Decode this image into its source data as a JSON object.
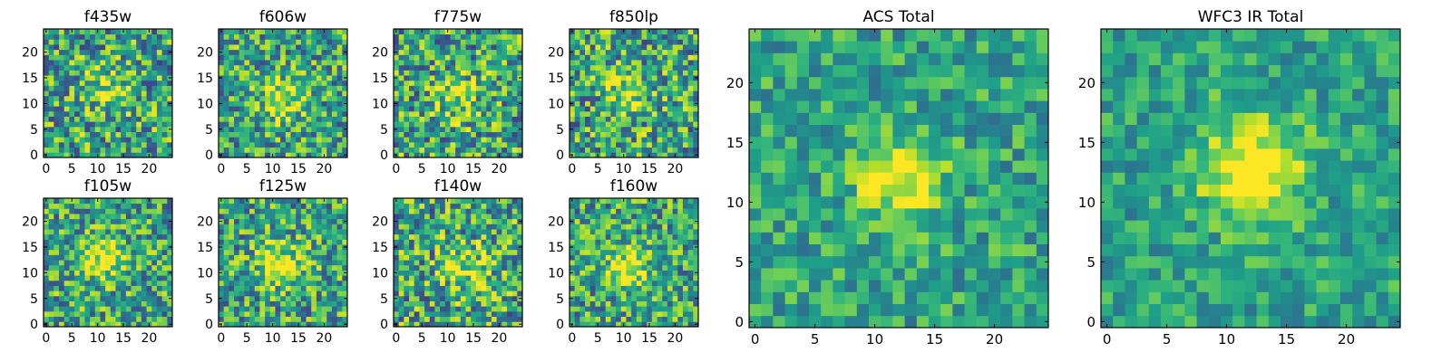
{
  "chart_data": [
    {
      "type": "heatmap",
      "title": "f435w",
      "colormap": "viridis",
      "grid_size": 25,
      "xticks": [
        0,
        5,
        10,
        15,
        20
      ],
      "yticks": [
        0,
        5,
        10,
        15,
        20
      ],
      "xlim": [
        -0.5,
        24.5
      ],
      "ylim": [
        -0.5,
        24.5
      ],
      "seed": 11,
      "noise": 0.55,
      "blob": {
        "x": 12,
        "y": 13,
        "sigma": 3.0,
        "amp": 0.3
      },
      "grid": false
    },
    {
      "type": "heatmap",
      "title": "f606w",
      "colormap": "viridis",
      "grid_size": 25,
      "xticks": [
        0,
        5,
        10,
        15,
        20
      ],
      "yticks": [
        0,
        5,
        10,
        15,
        20
      ],
      "xlim": [
        -0.5,
        24.5
      ],
      "ylim": [
        -0.5,
        24.5
      ],
      "seed": 23,
      "noise": 0.5,
      "blob": {
        "x": 12,
        "y": 11,
        "sigma": 3.0,
        "amp": 0.35
      },
      "grid": false
    },
    {
      "type": "heatmap",
      "title": "f775w",
      "colormap": "viridis",
      "grid_size": 25,
      "xticks": [
        0,
        5,
        10,
        15,
        20
      ],
      "yticks": [
        0,
        5,
        10,
        15,
        20
      ],
      "xlim": [
        -0.5,
        24.5
      ],
      "ylim": [
        -0.5,
        24.5
      ],
      "seed": 37,
      "noise": 0.55,
      "blob": {
        "x": 12,
        "y": 11,
        "sigma": 3.0,
        "amp": 0.3
      },
      "grid": false
    },
    {
      "type": "heatmap",
      "title": "f850lp",
      "colormap": "viridis",
      "grid_size": 25,
      "xticks": [
        0,
        5,
        10,
        15,
        20
      ],
      "yticks": [
        0,
        5,
        10,
        15,
        20
      ],
      "xlim": [
        -0.5,
        24.5
      ],
      "ylim": [
        -0.5,
        24.5
      ],
      "seed": 41,
      "noise": 0.55,
      "blob": {
        "x": 11,
        "y": 12,
        "sigma": 3.0,
        "amp": 0.3
      },
      "grid": false
    },
    {
      "type": "heatmap",
      "title": "f105w",
      "colormap": "viridis",
      "grid_size": 25,
      "xticks": [
        0,
        5,
        10,
        15,
        20
      ],
      "yticks": [
        0,
        5,
        10,
        15,
        20
      ],
      "xlim": [
        -0.5,
        24.5
      ],
      "ylim": [
        -0.5,
        24.5
      ],
      "seed": 53,
      "noise": 0.5,
      "blob": {
        "x": 11,
        "y": 13,
        "sigma": 3.2,
        "amp": 0.4
      },
      "grid": false
    },
    {
      "type": "heatmap",
      "title": "f125w",
      "colormap": "viridis",
      "grid_size": 25,
      "xticks": [
        0,
        5,
        10,
        15,
        20
      ],
      "yticks": [
        0,
        5,
        10,
        15,
        20
      ],
      "xlim": [
        -0.5,
        24.5
      ],
      "ylim": [
        -0.5,
        24.5
      ],
      "seed": 67,
      "noise": 0.5,
      "blob": {
        "x": 12,
        "y": 12,
        "sigma": 3.2,
        "amp": 0.35
      },
      "grid": false
    },
    {
      "type": "heatmap",
      "title": "f140w",
      "colormap": "viridis",
      "grid_size": 25,
      "xticks": [
        0,
        5,
        10,
        15,
        20
      ],
      "yticks": [
        0,
        5,
        10,
        15,
        20
      ],
      "xlim": [
        -0.5,
        24.5
      ],
      "ylim": [
        -0.5,
        24.5
      ],
      "seed": 79,
      "noise": 0.55,
      "blob": {
        "x": 13,
        "y": 11,
        "sigma": 3.2,
        "amp": 0.35
      },
      "grid": false
    },
    {
      "type": "heatmap",
      "title": "f160w",
      "colormap": "viridis",
      "grid_size": 25,
      "xticks": [
        0,
        5,
        10,
        15,
        20
      ],
      "yticks": [
        0,
        5,
        10,
        15,
        20
      ],
      "xlim": [
        -0.5,
        24.5
      ],
      "ylim": [
        -0.5,
        24.5
      ],
      "seed": 83,
      "noise": 0.5,
      "blob": {
        "x": 11,
        "y": 11,
        "sigma": 3.2,
        "amp": 0.4
      },
      "grid": false
    },
    {
      "type": "heatmap",
      "title": "ACS Total",
      "colormap": "viridis",
      "grid_size": 25,
      "xticks": [
        0,
        5,
        10,
        15,
        20
      ],
      "yticks": [
        0,
        5,
        10,
        15,
        20
      ],
      "xlim": [
        -0.5,
        24.5
      ],
      "ylim": [
        -0.5,
        24.5
      ],
      "seed": 97,
      "noise": 0.32,
      "blob": {
        "x": 12,
        "y": 12,
        "sigma": 2.5,
        "amp": 0.45
      },
      "grid": false
    },
    {
      "type": "heatmap",
      "title": "WFC3 IR Total",
      "colormap": "viridis",
      "grid_size": 25,
      "xticks": [
        0,
        5,
        10,
        15,
        20
      ],
      "yticks": [
        0,
        5,
        10,
        15,
        20
      ],
      "xlim": [
        -0.5,
        24.5
      ],
      "ylim": [
        -0.5,
        24.5
      ],
      "seed": 101,
      "noise": 0.28,
      "blob": {
        "x": 12,
        "y": 13,
        "sigma": 3.0,
        "amp": 0.5
      },
      "grid": false
    }
  ]
}
